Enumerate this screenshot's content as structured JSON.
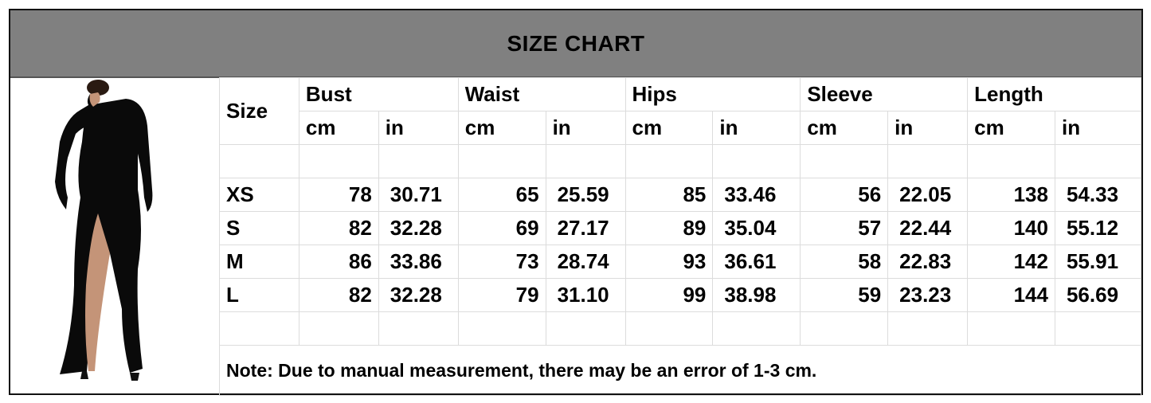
{
  "title": "SIZE CHART",
  "colors": {
    "title_bar": "#808080",
    "grid": "#dcdcdc",
    "dress": "#0a0a0a"
  },
  "image": {
    "icon": "black-one-shoulder-dress-photo"
  },
  "table": {
    "size_header": "Size",
    "groups": [
      "Bust",
      "Waist",
      "Hips",
      "Sleeve",
      "Length"
    ],
    "units": [
      "cm",
      "in"
    ],
    "rows": [
      {
        "size": "XS",
        "values": [
          "78",
          "30.71",
          "65",
          "25.59",
          "85",
          "33.46",
          "56",
          "22.05",
          "138",
          "54.33"
        ]
      },
      {
        "size": "S",
        "values": [
          "82",
          "32.28",
          "69",
          "27.17",
          "89",
          "35.04",
          "57",
          "22.44",
          "140",
          "55.12"
        ]
      },
      {
        "size": "M",
        "values": [
          "86",
          "33.86",
          "73",
          "28.74",
          "93",
          "36.61",
          "58",
          "22.83",
          "142",
          "55.91"
        ]
      },
      {
        "size": "L",
        "values": [
          "82",
          "32.28",
          "79",
          "31.10",
          "99",
          "38.98",
          "59",
          "23.23",
          "144",
          "56.69"
        ]
      }
    ]
  },
  "note": "Note: Due to manual measurement, there may be an error of 1-3 cm."
}
